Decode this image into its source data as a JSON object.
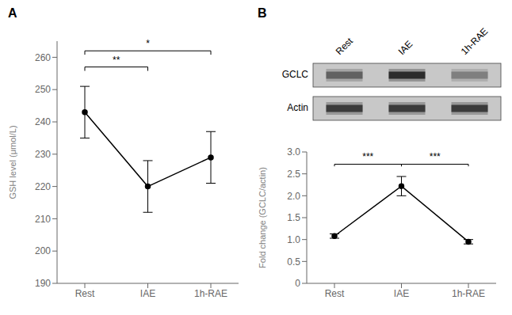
{
  "chart_data": [
    {
      "type": "line",
      "title": "A",
      "categories": [
        "Rest",
        "IAE",
        "1h-RAE"
      ],
      "values": [
        243,
        220,
        229
      ],
      "errors": [
        8,
        8,
        8
      ],
      "color": "#000000",
      "marker": "o",
      "grid": false,
      "ylabel": "GSH level (μmol/L)",
      "ylim": [
        190,
        265
      ],
      "yticks": [
        190,
        200,
        210,
        220,
        230,
        240,
        250,
        260
      ],
      "annotations": [
        {
          "from": "Rest",
          "to": "IAE",
          "y": 257,
          "label": "**"
        },
        {
          "from": "Rest",
          "to": "1h-RAE",
          "y": 262,
          "label": "*"
        }
      ]
    },
    {
      "type": "line",
      "title": "B",
      "categories": [
        "Rest",
        "IAE",
        "1h-RAE"
      ],
      "values": [
        1.08,
        2.22,
        0.95
      ],
      "errors": [
        0.05,
        0.22,
        0.05
      ],
      "color": "#000000",
      "marker": "o",
      "grid": false,
      "ylabel": "Fold change (GCLC/actin)",
      "ylim": [
        0,
        3.0
      ],
      "yticks": [
        0,
        0.5,
        {
          "value": 1.0,
          "label": "1.0"
        },
        1.5,
        {
          "value": 2.0,
          "label": "2.0"
        },
        2.5,
        {
          "value": 3.0,
          "label": "3.0"
        }
      ],
      "annotations": [
        {
          "from": "Rest",
          "to": "IAE",
          "y": 2.72,
          "label": "***"
        },
        {
          "from": "IAE",
          "to": "1h-RAE",
          "y": 2.72,
          "label": "***"
        }
      ],
      "blot": {
        "columns": [
          "Rest",
          "IAE",
          "1h-RAE"
        ],
        "color": "#c8c8c8",
        "rows": [
          {
            "name": "GCLC",
            "colors": [
              "#555555",
              "#1a1a1a",
              "#777777"
            ]
          },
          {
            "name": "Actin",
            "colors": [
              "#2a2a2a",
              "#2a2a2a",
              "#2a2a2a"
            ]
          }
        ]
      }
    }
  ]
}
